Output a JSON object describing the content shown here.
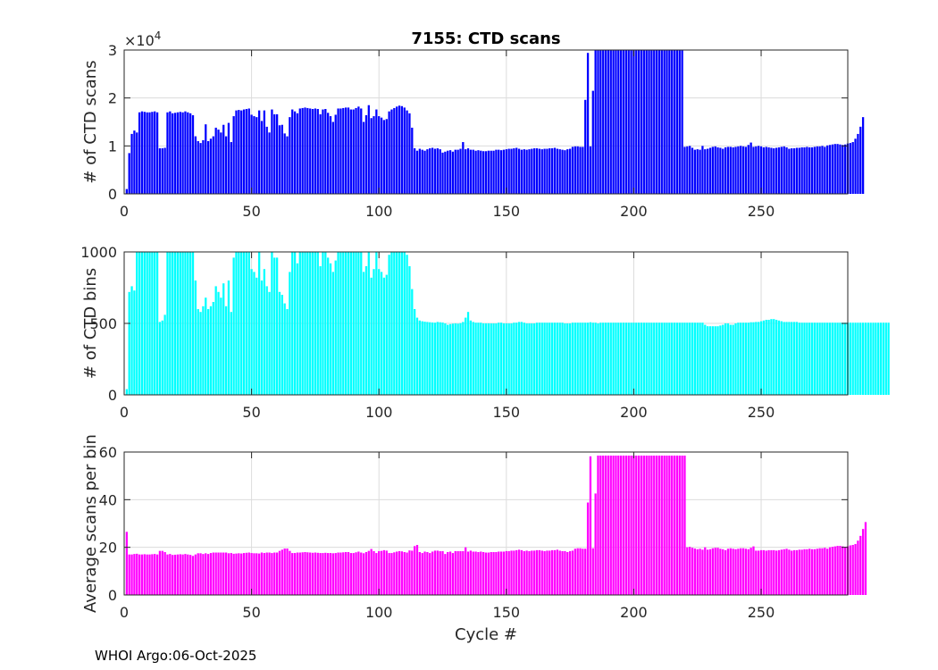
{
  "footer": "WHOI Argo:06-Oct-2025",
  "chart_data": [
    {
      "type": "bar",
      "title": "7155: CTD scans",
      "xlabel": "",
      "ylabel": "# of CTD scans",
      "xlim": [
        0,
        284
      ],
      "ylim": [
        0,
        30000
      ],
      "xticks": [
        0,
        50,
        100,
        150,
        200,
        250
      ],
      "yticks": [
        0,
        10000,
        20000,
        30000
      ],
      "ytick_labels": [
        "0",
        "1",
        "2",
        "3"
      ],
      "exponent_label": "×10",
      "exponent_power": "4",
      "color": "#0000ff",
      "series": [
        {
          "name": "CTD scans",
          "values": [
            1000,
            8500,
            12500,
            13200,
            12800,
            17000,
            17200,
            17100,
            17000,
            17000,
            17100,
            17200,
            17000,
            9500,
            9500,
            9600,
            17000,
            17200,
            16800,
            16900,
            17000,
            17100,
            17000,
            17200,
            17000,
            16800,
            16400,
            12000,
            11000,
            10600,
            11200,
            14500,
            11000,
            11500,
            12000,
            13800,
            13400,
            12800,
            14400,
            12000,
            14800,
            10800,
            16200,
            17400,
            17500,
            17400,
            17600,
            17700,
            17800,
            16500,
            16200,
            16000,
            17400,
            15200,
            17400,
            14000,
            12800,
            17600,
            16600,
            16600,
            14300,
            14400,
            12600,
            12000,
            16000,
            17600,
            17200,
            16800,
            17800,
            17900,
            18000,
            17900,
            17800,
            17700,
            17800,
            17700,
            16600,
            17600,
            17700,
            16900,
            16200,
            15000,
            16500,
            17800,
            17800,
            17900,
            18000,
            18000,
            17600,
            17600,
            17900,
            18200,
            17800,
            15000,
            16400,
            18500,
            15800,
            16200,
            17600,
            16200,
            15900,
            15400,
            15600,
            17200,
            17600,
            17900,
            18200,
            18400,
            18300,
            18000,
            17400,
            16800,
            13800,
            9500,
            9000,
            9400,
            9200,
            9000,
            9300,
            9500,
            9600,
            9400,
            9500,
            9300,
            8600,
            8800,
            9000,
            9100,
            8800,
            9200,
            9200,
            9400,
            10800,
            9300,
            9500,
            9200,
            9200,
            9000,
            9100,
            9000,
            8900,
            8900,
            9000,
            9000,
            9000,
            9200,
            9200,
            9100,
            9200,
            9300,
            9400,
            9400,
            9500,
            9600,
            9400,
            9200,
            9300,
            9200,
            9300,
            9400,
            9500,
            9500,
            9400,
            9300,
            9400,
            9400,
            9500,
            9500,
            9600,
            9400,
            9300,
            9200,
            9100,
            9300,
            9400,
            9800,
            9900,
            9900,
            9800,
            9800,
            19600,
            29400,
            9900,
            21500,
            30000,
            30000,
            30000,
            30000,
            30000,
            30000,
            30000,
            30000,
            30000,
            30000,
            30000,
            30000,
            30000,
            30000,
            30000,
            30000,
            30000,
            30000,
            30000,
            30000,
            30000,
            30000,
            30000,
            30000,
            30000,
            30000,
            30000,
            30000,
            30000,
            30000,
            30000,
            30000,
            30000,
            30000,
            30000,
            9800,
            9900,
            10000,
            9600,
            9200,
            9300,
            9200,
            10000,
            9300,
            9400,
            9600,
            9800,
            9900,
            9700,
            9600,
            9400,
            9700,
            9800,
            9800,
            9700,
            9800,
            9900,
            10000,
            9900,
            9800,
            10200,
            10700,
            9800,
            9900,
            10000,
            9900,
            9700,
            9800,
            9700,
            9600,
            9500,
            9600,
            9700,
            9800,
            9900,
            9700,
            9400,
            9500,
            9500,
            9600,
            9600,
            9700,
            9700,
            9800,
            9700,
            9700,
            9800,
            9900,
            9900,
            10000,
            9800,
            10100,
            10200,
            10300,
            10400,
            10400,
            10300,
            10200,
            10300,
            10500,
            10600,
            10800,
            11500,
            12500,
            14000,
            16000
          ]
        }
      ]
    },
    {
      "type": "bar",
      "title": "",
      "xlabel": "",
      "ylabel": "# of CTD bins",
      "xlim": [
        0,
        284
      ],
      "ylim": [
        0,
        1000
      ],
      "xticks": [
        0,
        50,
        100,
        150,
        200,
        250
      ],
      "yticks": [
        0,
        500,
        1000
      ],
      "ytick_labels": [
        "0",
        "500",
        "1000"
      ],
      "color": "#00ffff",
      "series": [
        {
          "name": "CTD bins",
          "values": [
            40,
            720,
            760,
            730,
            1000,
            1000,
            1000,
            1000,
            1000,
            1000,
            1000,
            1000,
            1000,
            510,
            520,
            560,
            1000,
            1000,
            1000,
            1000,
            1000,
            1000,
            1000,
            1000,
            1000,
            1000,
            1000,
            800,
            600,
            580,
            620,
            680,
            600,
            620,
            650,
            760,
            720,
            680,
            780,
            620,
            800,
            580,
            960,
            1000,
            1000,
            1000,
            1000,
            1000,
            1000,
            880,
            860,
            820,
            1000,
            800,
            880,
            760,
            720,
            1000,
            960,
            960,
            720,
            700,
            640,
            600,
            860,
            1000,
            1000,
            920,
            1000,
            1000,
            1000,
            1000,
            1000,
            1000,
            1000,
            1000,
            900,
            1000,
            1000,
            960,
            920,
            860,
            940,
            1000,
            1000,
            1000,
            1000,
            1000,
            1000,
            1000,
            1000,
            1000,
            1000,
            860,
            900,
            1000,
            820,
            880,
            1000,
            880,
            860,
            820,
            840,
            980,
            1000,
            1000,
            1000,
            1000,
            1000,
            1000,
            980,
            900,
            740,
            600,
            540,
            520,
            515,
            512,
            510,
            508,
            506,
            505,
            510,
            508,
            506,
            500,
            490,
            495,
            498,
            500,
            498,
            502,
            510,
            540,
            580,
            520,
            510,
            505,
            505,
            505,
            500,
            500,
            500,
            500,
            500,
            500,
            505,
            505,
            500,
            500,
            500,
            500,
            505,
            505,
            510,
            510,
            505,
            500,
            500,
            500,
            500,
            505,
            505,
            505,
            505,
            505,
            505,
            505,
            505,
            505,
            505,
            505,
            500,
            500,
            500,
            505,
            505,
            505,
            505,
            505,
            505,
            505,
            508,
            505,
            505,
            500,
            505,
            505,
            505,
            505,
            505,
            505,
            505,
            505,
            505,
            505,
            505,
            505,
            505,
            505,
            505,
            505,
            505,
            505,
            505,
            505,
            505,
            505,
            505,
            505,
            505,
            505,
            505,
            505,
            505,
            505,
            505,
            505,
            505,
            505,
            505,
            505,
            505,
            505,
            505,
            505,
            505,
            490,
            480,
            480,
            480,
            480,
            480,
            485,
            490,
            500,
            500,
            490,
            490,
            500,
            505,
            505,
            505,
            505,
            505,
            508,
            508,
            510,
            510,
            515,
            520,
            525,
            525,
            530,
            530,
            525,
            520,
            515,
            510,
            510,
            510,
            510,
            510,
            510,
            505,
            505,
            505,
            505,
            505,
            505,
            505,
            505,
            505,
            505,
            505,
            505,
            505,
            505,
            505,
            505,
            505,
            505,
            505,
            505,
            505,
            505,
            505,
            505,
            505,
            505,
            505,
            505,
            505,
            505,
            505,
            505,
            505,
            505,
            505,
            505
          ]
        }
      ]
    },
    {
      "type": "bar",
      "title": "",
      "xlabel": "Cycle #",
      "ylabel": "Average scans per bin",
      "xlim": [
        0,
        284
      ],
      "ylim": [
        0,
        60
      ],
      "xticks": [
        0,
        50,
        100,
        150,
        200,
        250
      ],
      "yticks": [
        0,
        20,
        40,
        60
      ],
      "ytick_labels": [
        "0",
        "20",
        "40",
        "60"
      ],
      "color": "#ff00ff",
      "series": [
        {
          "name": "Average scans per bin",
          "values": [
            26.5,
            17,
            17,
            17.2,
            17.3,
            17,
            17,
            17.1,
            17,
            17,
            17.1,
            17.2,
            17,
            18.5,
            18.5,
            18,
            17,
            17.2,
            16.8,
            16.9,
            17,
            17.1,
            17,
            17.2,
            17,
            16.8,
            16.4,
            17,
            17.5,
            17.5,
            17.2,
            17.5,
            17.2,
            17.6,
            17.8,
            17.8,
            17.8,
            17.8,
            17.8,
            17.8,
            17.5,
            17.6,
            17.3,
            17.4,
            17.5,
            17.4,
            17.6,
            17.7,
            17.8,
            17.6,
            17.5,
            17.5,
            17.4,
            17.8,
            17.6,
            17.8,
            17.8,
            17.6,
            17.8,
            17.8,
            18.5,
            19,
            19.5,
            19.5,
            18.5,
            17.6,
            17.6,
            17.8,
            17.8,
            17.9,
            18,
            17.9,
            17.8,
            17.7,
            17.8,
            17.7,
            17.6,
            17.6,
            17.7,
            17.6,
            17.6,
            17.5,
            17.6,
            17.8,
            17.8,
            17.9,
            18,
            18,
            17.6,
            17.6,
            17.9,
            18.2,
            17.8,
            17.5,
            18,
            18.5,
            19.3,
            18.4,
            17.6,
            18.4,
            18.5,
            18.8,
            18.6,
            17.6,
            17.6,
            17.9,
            18.2,
            18.4,
            18.3,
            18,
            17.8,
            18.7,
            18.6,
            20.5,
            21,
            18,
            17.6,
            18.2,
            18,
            17.6,
            18.2,
            18.6,
            18.6,
            18.4,
            18.4,
            17.2,
            18,
            18.2,
            17.6,
            18.4,
            18.4,
            18.4,
            18.4,
            20,
            18.2,
            18.6,
            18.2,
            18.2,
            18,
            18.2,
            18,
            17.8,
            17.8,
            18,
            18,
            18,
            18.2,
            18.2,
            18.2,
            18.4,
            18.4,
            18.6,
            18.6,
            18.8,
            19,
            18.8,
            18.4,
            18.6,
            18.4,
            18.6,
            18.6,
            18.8,
            18.8,
            18.6,
            18.4,
            18.6,
            18.6,
            18.8,
            18.8,
            19,
            18.6,
            18.4,
            18.4,
            18,
            18.4,
            18.6,
            19.4,
            19.6,
            19.6,
            19.4,
            19.4,
            38.8,
            58.2,
            19.6,
            42.6,
            58.5,
            58.5,
            58.5,
            58.5,
            58.5,
            58.5,
            58.5,
            58.5,
            58.5,
            58.5,
            58.5,
            58.5,
            58.5,
            58.5,
            58.5,
            58.5,
            58.5,
            58.5,
            58.5,
            58.5,
            58.5,
            58.5,
            58.5,
            58.5,
            58.5,
            58.5,
            58.5,
            58.5,
            58.5,
            58.5,
            58.5,
            58.5,
            58.5,
            58.5,
            58.5,
            20,
            20.2,
            19.8,
            19.5,
            19.2,
            19.4,
            19,
            20,
            19,
            19.2,
            19.6,
            19.8,
            19.8,
            19.4,
            19.2,
            18.8,
            19.4,
            19.6,
            19.4,
            19.2,
            19.4,
            19.6,
            19.6,
            19.4,
            19.2,
            19.8,
            20.4,
            18.6,
            18.6,
            18.8,
            18.8,
            18.6,
            18.8,
            18.8,
            18.8,
            18.6,
            18.8,
            19,
            19.2,
            19.4,
            19,
            18.6,
            18.8,
            18.8,
            19,
            19,
            19.2,
            19.2,
            19.4,
            19.2,
            19.2,
            19.4,
            19.6,
            19.6,
            19.8,
            19.4,
            20,
            20.2,
            20.4,
            20.6,
            20.6,
            20.4,
            20.2,
            20.4,
            20.8,
            21,
            21.4,
            22.8,
            24.8,
            27.7,
            30.6
          ]
        }
      ]
    }
  ]
}
